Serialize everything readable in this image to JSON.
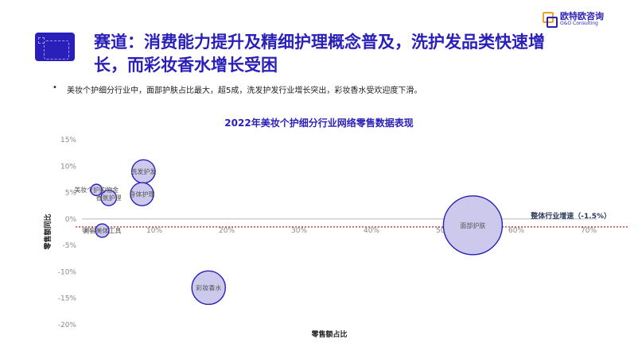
{
  "slide": {
    "title": "赛道：消费能力提升及精细护理概念普及，洗护发品类快速增长，而彩妆香水增长受困",
    "bullet": "美妆个护细分行业中，面部护肤占比最大，超5成，洗发护发行业增长突出，彩妆香水受欢迎度下滑。",
    "bullet_marker": "•",
    "logo_cn": "欧特欧咨询",
    "logo_en": "O&O Consulting",
    "colors": {
      "brand": "#2a1fb8",
      "accent": "#f0a12a",
      "bubble_fill": "#ccc9ec",
      "bubble_stroke": "#2a1fb8",
      "ref_line": "#cc2222"
    }
  },
  "chart_data": {
    "type": "scatter",
    "title": "2022年美妆个护细分行业网络零售数据表现",
    "xlabel": "零售额占比",
    "ylabel": "零售额同比",
    "xlim": [
      0,
      0.7
    ],
    "ylim": [
      -0.2,
      0.15
    ],
    "x_ticks": [
      0,
      0.1,
      0.2,
      0.3,
      0.4,
      0.5,
      0.6,
      0.7
    ],
    "x_tick_labels": [
      "0%",
      "10%",
      "20%",
      "30%",
      "40%",
      "50%",
      "60%",
      "70%"
    ],
    "y_ticks": [
      0.15,
      0.1,
      0.05,
      0,
      -0.05,
      -0.1,
      -0.15,
      -0.2
    ],
    "y_tick_labels": [
      "15%",
      "10%",
      "5%",
      "0%",
      "-5%",
      "-10%",
      "-15%",
      "-20%"
    ],
    "reference_line": {
      "y": -0.015,
      "label": "整体行业增速（-1.5%）"
    },
    "points": [
      {
        "label": "洗发护发",
        "x": 0.085,
        "y": 0.09,
        "size": 0.085
      },
      {
        "label": "美妆个护购物金",
        "x": 0.02,
        "y": 0.055,
        "size": 0.02
      },
      {
        "label": "香氛护理",
        "x": 0.037,
        "y": 0.04,
        "size": 0.037
      },
      {
        "label": "身体护理",
        "x": 0.083,
        "y": 0.047,
        "size": 0.083
      },
      {
        "label": "美容美体工具",
        "x": 0.028,
        "y": -0.022,
        "size": 0.028
      },
      {
        "label": "面部护肤",
        "x": 0.54,
        "y": -0.012,
        "size": 0.54
      },
      {
        "label": "彩妆香水",
        "x": 0.175,
        "y": -0.13,
        "size": 0.175
      }
    ]
  }
}
